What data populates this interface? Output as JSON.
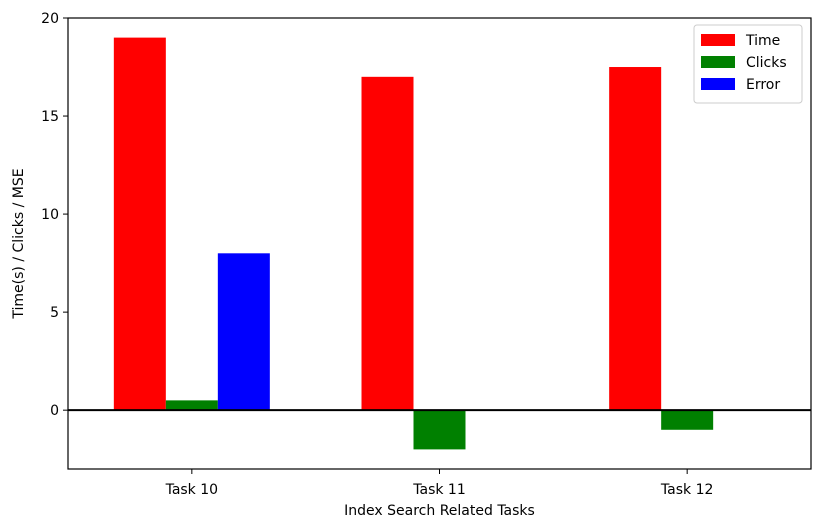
{
  "chart_data": {
    "type": "bar",
    "title": "",
    "xlabel": "Index Search Related Tasks",
    "ylabel": "Time(s) / Clicks / MSE",
    "categories": [
      "Task 10",
      "Task 11",
      "Task 12"
    ],
    "series": [
      {
        "name": "Time",
        "color": "#ff0000",
        "values": [
          19.0,
          17.0,
          17.5
        ]
      },
      {
        "name": "Clicks",
        "color": "#008000",
        "values": [
          0.5,
          -2.0,
          -1.0
        ]
      },
      {
        "name": "Error",
        "color": "#0000ff",
        "values": [
          8.0,
          0,
          0
        ]
      }
    ],
    "ylim": [
      -3,
      20
    ],
    "yticks": [
      0,
      5,
      10,
      15,
      20
    ],
    "zero_line": true,
    "grid": false,
    "legend_position": "top-right"
  }
}
